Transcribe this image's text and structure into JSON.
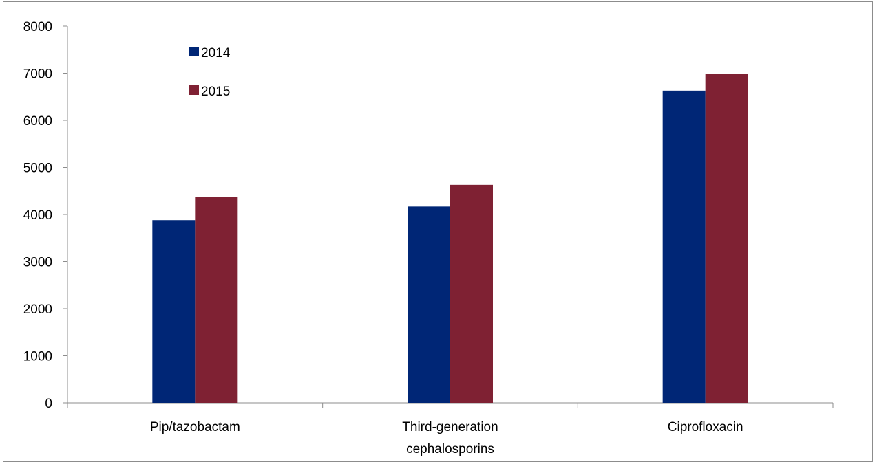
{
  "chart_data": {
    "type": "bar",
    "categories": [
      "Pip/tazobactam",
      "Third-generation cephalosporins",
      "Ciprofloxacin"
    ],
    "category_lines": [
      [
        "Pip/tazobactam"
      ],
      [
        "Third-generation",
        "cephalosporins"
      ],
      [
        "Ciprofloxacin"
      ]
    ],
    "series": [
      {
        "name": "2014",
        "color": "#002676",
        "values": [
          3880,
          4170,
          6630
        ]
      },
      {
        "name": "2015",
        "color": "#7f2133",
        "values": [
          4370,
          4630,
          6980
        ]
      }
    ],
    "title": "",
    "xlabel": "",
    "ylabel": "",
    "ylim": [
      0,
      8000
    ],
    "yticks": [
      "0",
      "1000",
      "2000",
      "3000",
      "4000",
      "5000",
      "6000",
      "7000",
      "8000"
    ],
    "grid": false,
    "legend_position": "top-left"
  }
}
